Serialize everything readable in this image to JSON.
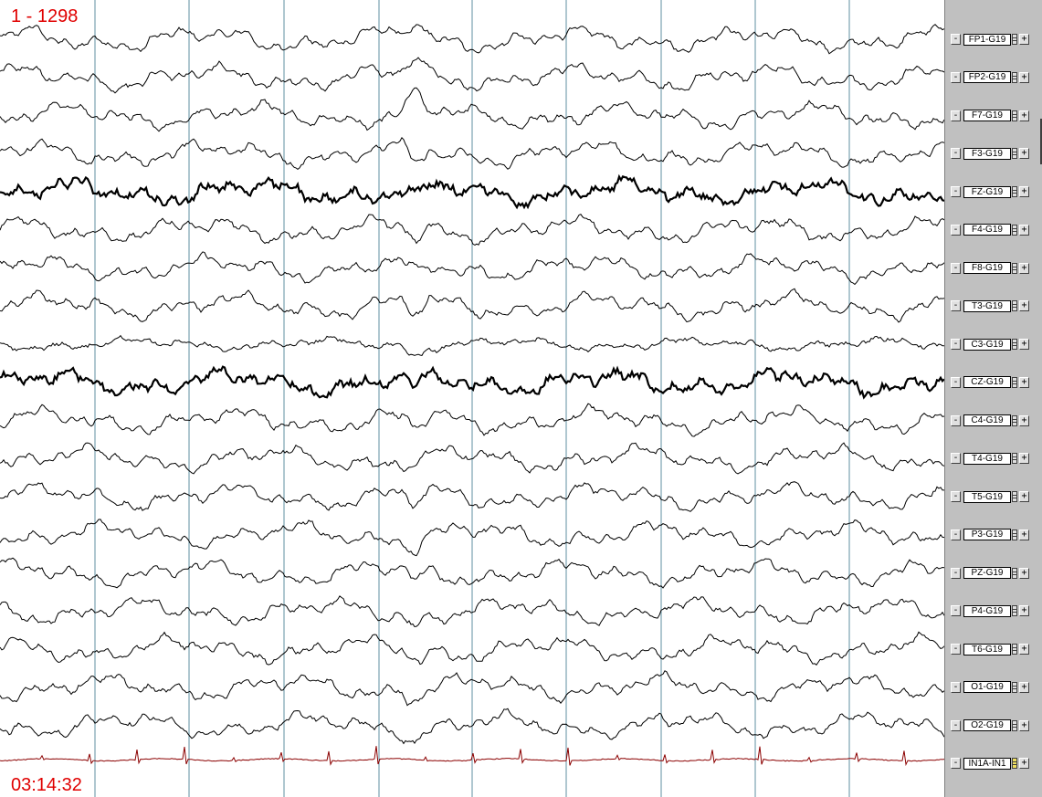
{
  "header": {
    "page_range": "1 - 1298"
  },
  "footer": {
    "timestamp": "03:14:32"
  },
  "colors": {
    "annotation": "#e00000",
    "trace": "#000000",
    "ecg_trace": "#8b0000",
    "gridline": "#5f8fa0"
  },
  "controls": {
    "minus": "-",
    "plus": "+"
  },
  "channels": [
    {
      "label": "FP1-G19"
    },
    {
      "label": "FP2-G19"
    },
    {
      "label": "F7-G19"
    },
    {
      "label": "F3-G19"
    },
    {
      "label": "FZ-G19"
    },
    {
      "label": "F4-G19"
    },
    {
      "label": "F8-G19"
    },
    {
      "label": "T3-G19"
    },
    {
      "label": "C3-G19"
    },
    {
      "label": "CZ-G19"
    },
    {
      "label": "C4-G19"
    },
    {
      "label": "T4-G19"
    },
    {
      "label": "T5-G19"
    },
    {
      "label": "P3-G19"
    },
    {
      "label": "PZ-G19"
    },
    {
      "label": "P4-G19"
    },
    {
      "label": "T6-G19"
    },
    {
      "label": "O1-G19"
    },
    {
      "label": "O2-G19"
    },
    {
      "label": "IN1A-IN1"
    }
  ]
}
